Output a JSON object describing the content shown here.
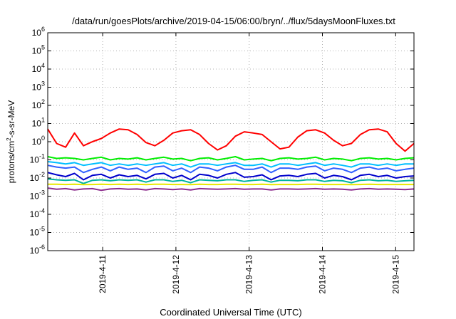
{
  "chart_data": {
    "type": "line",
    "title": "/data/run/goesPlots/archive/2019-04-15/06:00/bryn/../flux/5daysMoonFluxes.txt",
    "xlabel": "Coordinated Universal Time (UTC)",
    "ylabel_parts": [
      "protons/cm",
      "2",
      "-s-sr-MeV"
    ],
    "y_scale": "log",
    "ylim": [
      1e-06,
      1000000.0
    ],
    "y_ticks": [
      {
        "mant": "10",
        "exp": "-6"
      },
      {
        "mant": "10",
        "exp": "-5"
      },
      {
        "mant": "10",
        "exp": "-4"
      },
      {
        "mant": "10",
        "exp": "-3"
      },
      {
        "mant": "10",
        "exp": "-2"
      },
      {
        "mant": "10",
        "exp": "-1"
      },
      {
        "mant": "10",
        "exp": "0"
      },
      {
        "mant": "10",
        "exp": "1"
      },
      {
        "mant": "10",
        "exp": "2"
      },
      {
        "mant": "10",
        "exp": "3"
      },
      {
        "mant": "10",
        "exp": "4"
      },
      {
        "mant": "10",
        "exp": "5"
      },
      {
        "mant": "10",
        "exp": "6"
      }
    ],
    "xlim": [
      "2019-04-10 06:00",
      "2019-04-15 06:00"
    ],
    "x_ticks": [
      "2019-4-11",
      "2019-4-12",
      "2019-4-13",
      "2019-4-14",
      "2019-4-15"
    ],
    "grid": true,
    "legend": "none",
    "series": [
      {
        "color": "#ff0000",
        "values": [
          5.0,
          0.8,
          0.5,
          3.0,
          0.6,
          1.0,
          1.5,
          3.0,
          5.0,
          4.5,
          2.5,
          0.9,
          0.6,
          1.2,
          3.0,
          4.0,
          4.5,
          2.5,
          0.8,
          0.35,
          0.6,
          2.0,
          3.5,
          3.0,
          2.5,
          1.0,
          0.4,
          0.5,
          1.8,
          4.0,
          4.5,
          3.0,
          1.2,
          0.6,
          0.8,
          2.5,
          4.5,
          5.0,
          3.5,
          0.8,
          0.3,
          0.8
        ]
      },
      {
        "color": "#00ee00",
        "values": [
          0.15,
          0.12,
          0.13,
          0.12,
          0.1,
          0.12,
          0.14,
          0.1,
          0.12,
          0.11,
          0.13,
          0.1,
          0.12,
          0.14,
          0.11,
          0.12,
          0.09,
          0.12,
          0.13,
          0.1,
          0.12,
          0.15,
          0.1,
          0.11,
          0.12,
          0.09,
          0.12,
          0.13,
          0.11,
          0.12,
          0.14,
          0.1,
          0.12,
          0.11,
          0.09,
          0.12,
          0.13,
          0.11,
          0.12,
          0.1,
          0.12,
          0.13
        ]
      },
      {
        "color": "#00bfff",
        "values": [
          0.08,
          0.07,
          0.06,
          0.07,
          0.05,
          0.06,
          0.07,
          0.05,
          0.06,
          0.05,
          0.06,
          0.05,
          0.06,
          0.07,
          0.05,
          0.06,
          0.04,
          0.06,
          0.06,
          0.05,
          0.06,
          0.07,
          0.05,
          0.05,
          0.06,
          0.04,
          0.06,
          0.06,
          0.05,
          0.06,
          0.07,
          0.05,
          0.06,
          0.05,
          0.04,
          0.06,
          0.06,
          0.05,
          0.06,
          0.05,
          0.06,
          0.06
        ]
      },
      {
        "color": "#3060ff",
        "values": [
          0.05,
          0.04,
          0.035,
          0.04,
          0.02,
          0.03,
          0.04,
          0.025,
          0.04,
          0.03,
          0.035,
          0.02,
          0.04,
          0.045,
          0.025,
          0.035,
          0.02,
          0.04,
          0.035,
          0.025,
          0.04,
          0.05,
          0.03,
          0.03,
          0.04,
          0.02,
          0.035,
          0.035,
          0.03,
          0.04,
          0.045,
          0.025,
          0.035,
          0.03,
          0.02,
          0.035,
          0.04,
          0.03,
          0.035,
          0.025,
          0.03,
          0.035
        ]
      },
      {
        "color": "#0000cc",
        "values": [
          0.02,
          0.015,
          0.012,
          0.018,
          0.008,
          0.014,
          0.016,
          0.01,
          0.015,
          0.012,
          0.014,
          0.009,
          0.016,
          0.018,
          0.01,
          0.014,
          0.008,
          0.016,
          0.014,
          0.01,
          0.016,
          0.02,
          0.011,
          0.012,
          0.015,
          0.008,
          0.013,
          0.014,
          0.012,
          0.016,
          0.018,
          0.01,
          0.014,
          0.012,
          0.008,
          0.014,
          0.016,
          0.012,
          0.014,
          0.01,
          0.012,
          0.013
        ]
      },
      {
        "color": "#00b4a0",
        "values": [
          0.009,
          0.008,
          0.0075,
          0.008,
          0.005,
          0.0075,
          0.008,
          0.007,
          0.008,
          0.0075,
          0.008,
          0.006,
          0.008,
          0.008,
          0.0065,
          0.0075,
          0.0055,
          0.008,
          0.0075,
          0.007,
          0.008,
          0.008,
          0.0065,
          0.0075,
          0.008,
          0.006,
          0.0075,
          0.0075,
          0.007,
          0.008,
          0.008,
          0.0065,
          0.0075,
          0.007,
          0.0055,
          0.0075,
          0.008,
          0.007,
          0.0075,
          0.0065,
          0.007,
          0.0075
        ]
      },
      {
        "color": "#e8e800",
        "values": [
          0.0045,
          0.0045,
          0.0044,
          0.0045,
          0.0043,
          0.0044,
          0.0045,
          0.0044,
          0.0045,
          0.0044,
          0.0045,
          0.0043,
          0.0045,
          0.0045,
          0.0044,
          0.0044,
          0.0043,
          0.0045,
          0.0044,
          0.0044,
          0.0045,
          0.0045,
          0.0044,
          0.0044,
          0.0045,
          0.0043,
          0.0044,
          0.0044,
          0.0044,
          0.0045,
          0.0045,
          0.0044,
          0.0044,
          0.0044,
          0.0043,
          0.0044,
          0.0045,
          0.0044,
          0.0044,
          0.0044,
          0.0044,
          0.0044
        ]
      },
      {
        "color": "#8e2e8e",
        "values": [
          0.0028,
          0.0024,
          0.0026,
          0.0022,
          0.0025,
          0.0026,
          0.0021,
          0.0025,
          0.0026,
          0.0024,
          0.0025,
          0.0022,
          0.0026,
          0.0025,
          0.0023,
          0.0025,
          0.0022,
          0.0026,
          0.0025,
          0.0024,
          0.0025,
          0.0026,
          0.0024,
          0.0025,
          0.0025,
          0.0022,
          0.0025,
          0.0025,
          0.0024,
          0.0025,
          0.0026,
          0.0024,
          0.0025,
          0.0024,
          0.0022,
          0.0025,
          0.0026,
          0.0024,
          0.0025,
          0.0024,
          0.0023,
          0.0025
        ]
      }
    ]
  }
}
